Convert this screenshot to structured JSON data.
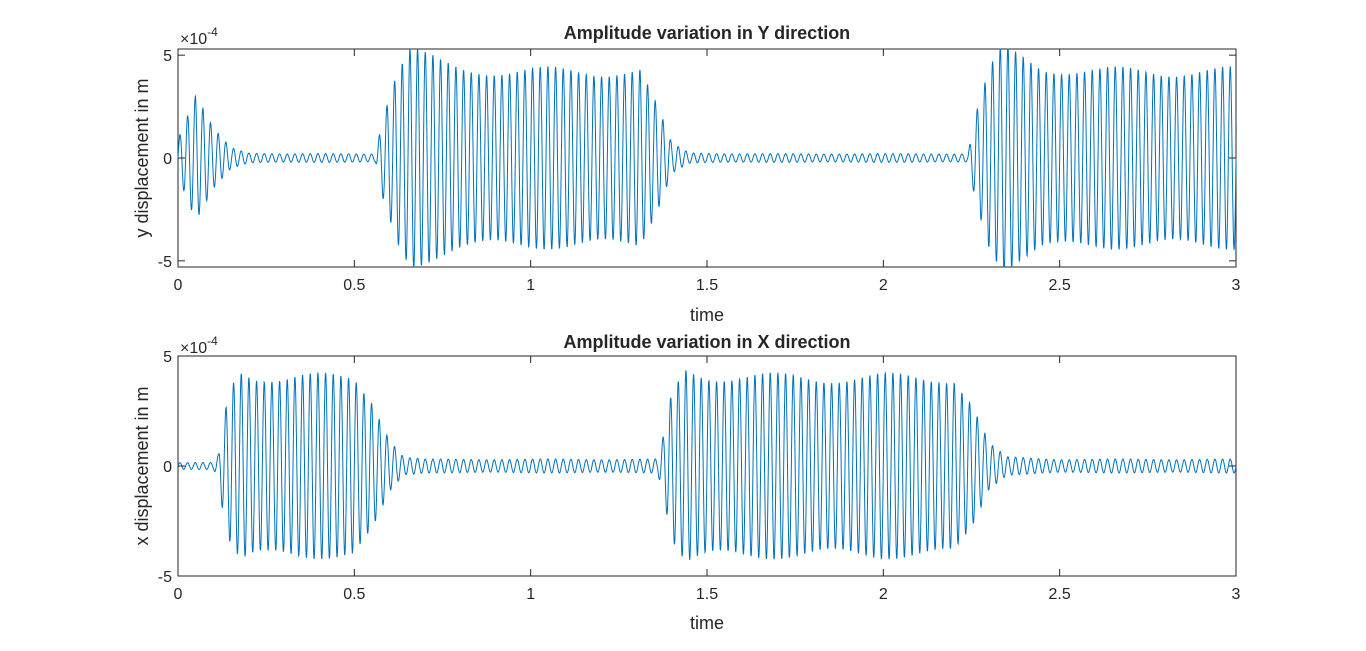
{
  "chart_data": [
    {
      "type": "line",
      "title": "Amplitude variation in Y direction",
      "xlabel": "time",
      "ylabel": "y displacement in m",
      "exponent_label": "×10",
      "exponent_power": "-4",
      "xlim": [
        0,
        3
      ],
      "ylim": [
        -5.3,
        5.3
      ],
      "xticks": [
        0,
        0.5,
        1,
        1.5,
        2,
        2.5,
        3
      ],
      "xtick_labels": [
        "0",
        "0.5",
        "1",
        "1.5",
        "2",
        "2.5",
        "3"
      ],
      "yticks": [
        -5,
        0,
        5
      ],
      "ytick_labels": [
        "-5",
        "0",
        "5"
      ],
      "units_scale": "1e-4",
      "series": [
        {
          "color": "#0072bd",
          "frequency_hz": 46,
          "envelope": [
            [
              0.0,
              0.9
            ],
            [
              0.05,
              2.9
            ],
            [
              0.1,
              1.4
            ],
            [
              0.15,
              0.5
            ],
            [
              0.2,
              0.25
            ],
            [
              0.3,
              0.2
            ],
            [
              0.5,
              0.2
            ],
            [
              0.56,
              0.2
            ],
            [
              0.58,
              2.0
            ],
            [
              0.62,
              4.2
            ],
            [
              0.66,
              5.3
            ],
            [
              0.7,
              4.9
            ],
            [
              0.75,
              4.5
            ],
            [
              0.8,
              4.3
            ],
            [
              1.0,
              4.2
            ],
            [
              1.2,
              4.2
            ],
            [
              1.31,
              4.2
            ],
            [
              1.36,
              2.4
            ],
            [
              1.4,
              0.7
            ],
            [
              1.45,
              0.25
            ],
            [
              1.6,
              0.2
            ],
            [
              2.0,
              0.2
            ],
            [
              2.24,
              0.2
            ],
            [
              2.26,
              2.0
            ],
            [
              2.3,
              4.2
            ],
            [
              2.34,
              5.3
            ],
            [
              2.38,
              4.9
            ],
            [
              2.45,
              4.4
            ],
            [
              2.6,
              4.2
            ],
            [
              3.0,
              4.2
            ]
          ]
        }
      ]
    },
    {
      "type": "line",
      "title": "Amplitude variation in X direction",
      "xlabel": "time",
      "ylabel": "x displacement in m",
      "exponent_label": "×10",
      "exponent_power": "-4",
      "xlim": [
        0,
        3
      ],
      "ylim": [
        -5,
        5
      ],
      "xticks": [
        0,
        0.5,
        1,
        1.5,
        2,
        2.5,
        3
      ],
      "xtick_labels": [
        "0",
        "0.5",
        "1",
        "1.5",
        "2",
        "2.5",
        "3"
      ],
      "yticks": [
        -5,
        0,
        5
      ],
      "ytick_labels": [
        "-5",
        "0",
        "5"
      ],
      "units_scale": "1e-4",
      "series": [
        {
          "color": "#0072bd",
          "frequency_hz": 46,
          "envelope": [
            [
              0.0,
              0.15
            ],
            [
              0.1,
              0.15
            ],
            [
              0.115,
              0.5
            ],
            [
              0.125,
              1.8
            ],
            [
              0.15,
              3.6
            ],
            [
              0.18,
              4.3
            ],
            [
              0.22,
              4.1
            ],
            [
              0.3,
              4.0
            ],
            [
              0.5,
              4.0
            ],
            [
              0.55,
              3.0
            ],
            [
              0.6,
              1.2
            ],
            [
              0.64,
              0.4
            ],
            [
              0.7,
              0.3
            ],
            [
              1.36,
              0.3
            ],
            [
              1.375,
              1.2
            ],
            [
              1.4,
              3.2
            ],
            [
              1.44,
              4.3
            ],
            [
              1.5,
              4.1
            ],
            [
              1.7,
              4.0
            ],
            [
              2.2,
              4.0
            ],
            [
              2.25,
              2.8
            ],
            [
              2.3,
              1.0
            ],
            [
              2.35,
              0.4
            ],
            [
              2.5,
              0.3
            ],
            [
              3.0,
              0.3
            ]
          ]
        }
      ]
    }
  ]
}
